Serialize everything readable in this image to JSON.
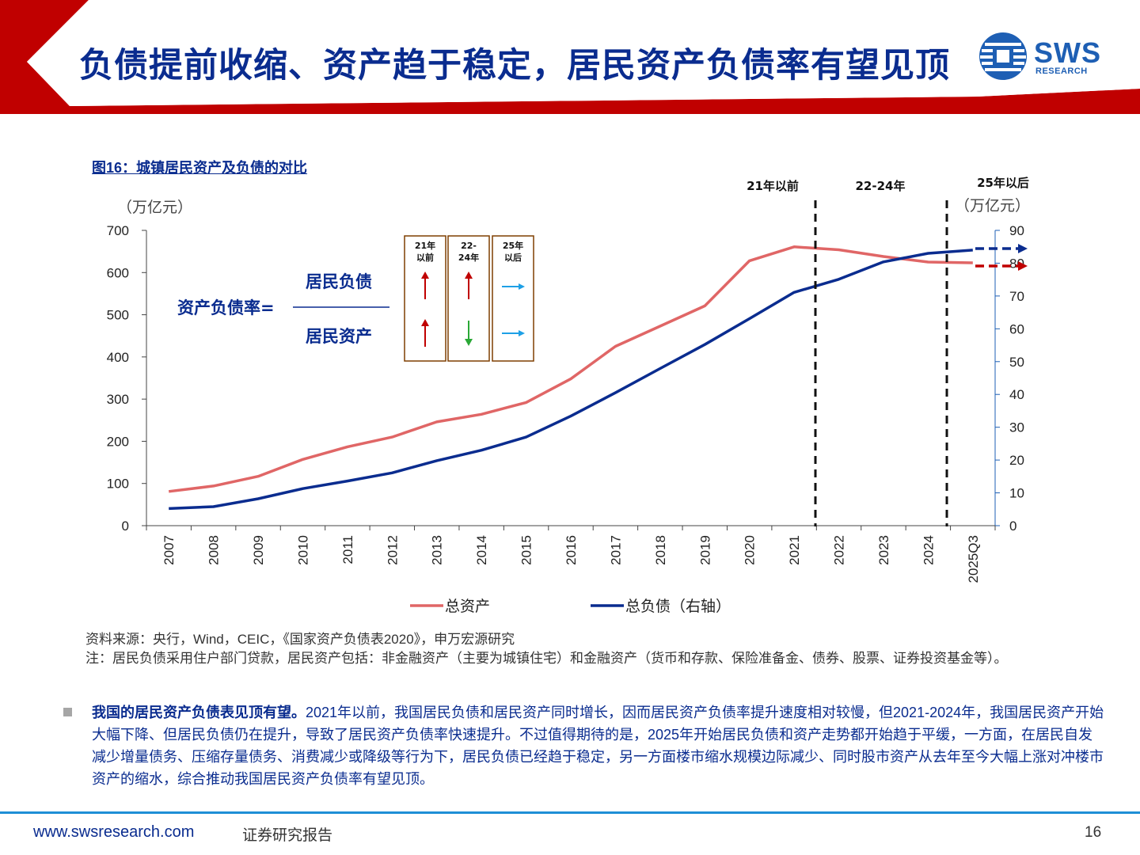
{
  "header": {
    "title": "负债提前收缩、资产趋于稳定，居民资产负债率有望见顶",
    "logo_text": "SWS",
    "logo_sub": "RESEARCH"
  },
  "figure": {
    "title": "图16：城镇居民资产及负债的对比"
  },
  "chart_data": {
    "type": "line",
    "x": [
      "2007",
      "2008",
      "2009",
      "2010",
      "2011",
      "2012",
      "2013",
      "2014",
      "2015",
      "2016",
      "2017",
      "2018",
      "2019",
      "2020",
      "2021",
      "2022",
      "2023",
      "2024",
      "2025Q3"
    ],
    "series": [
      {
        "name": "总资产",
        "axis": "left",
        "color": "#e06666",
        "values": [
          81,
          94,
          117,
          157,
          187,
          210,
          246,
          264,
          292,
          348,
          425,
          473,
          521,
          628,
          661,
          654,
          638,
          625,
          623
        ]
      },
      {
        "name": "总负债（右轴）",
        "axis": "right",
        "color": "#0a2c8f",
        "values": [
          5.2,
          5.8,
          8.2,
          11.3,
          13.6,
          16.1,
          19.8,
          23.0,
          27.0,
          33.4,
          40.5,
          47.9,
          55.2,
          63.1,
          71.1,
          75.1,
          80.4,
          83.0,
          84.0
        ]
      }
    ],
    "left_axis": {
      "unit": "（万亿元）",
      "min": 0,
      "max": 700,
      "ticks": [
        0,
        100,
        200,
        300,
        400,
        500,
        600,
        700
      ]
    },
    "right_axis": {
      "unit": "（万亿元）",
      "min": 0,
      "max": 90,
      "ticks": [
        0,
        10,
        20,
        30,
        40,
        50,
        60,
        70,
        80,
        90
      ]
    },
    "periods": [
      "21年以前",
      "22-24年",
      "25年以后"
    ],
    "formula": {
      "label": "资产负债率=",
      "numerator": "居民负债",
      "denominator": "居民资产"
    },
    "trend_boxes": [
      {
        "head_line1": "21年",
        "head_line2": "以前",
        "liability": "up",
        "asset": "up"
      },
      {
        "head_line1": "22-",
        "head_line2": "24年",
        "liability": "up",
        "asset": "down"
      },
      {
        "head_line1": "25年",
        "head_line2": "以后",
        "liability": "flat",
        "asset": "flat"
      }
    ],
    "legend_placement": "bottom",
    "grid": false
  },
  "source": {
    "line1": "资料来源：央行，Wind，CEIC，《国家资产负债表2020》，申万宏源研究",
    "line2": "注：居民负债采用住户部门贷款，居民资产包括：非金融资产（主要为城镇住宅）和金融资产（货币和存款、保险准备金、债券、股票、证券投资基金等）。"
  },
  "body": {
    "lead": "我国的居民资产负债表见顶有望。",
    "text": "2021年以前，我国居民负债和居民资产同时增长，因而居民资产负债率提升速度相对较慢，但2021-2024年，我国居民资产开始大幅下降、但居民负债仍在提升，导致了居民资产负债率快速提升。不过值得期待的是，2025年开始居民负债和资产走势都开始趋于平缓，一方面，在居民自发减少增量债务、压缩存量债务、消费减少或降级等行为下，居民负债已经趋于稳定，另一方面楼市缩水规模边际减少、同时股市资产从去年至今大幅上涨对冲楼市资产的缩水，综合推动我国居民资产负债率有望见顶。"
  },
  "footer": {
    "url": "www.swsresearch.com",
    "label": "证券研究报告",
    "page": "16"
  }
}
